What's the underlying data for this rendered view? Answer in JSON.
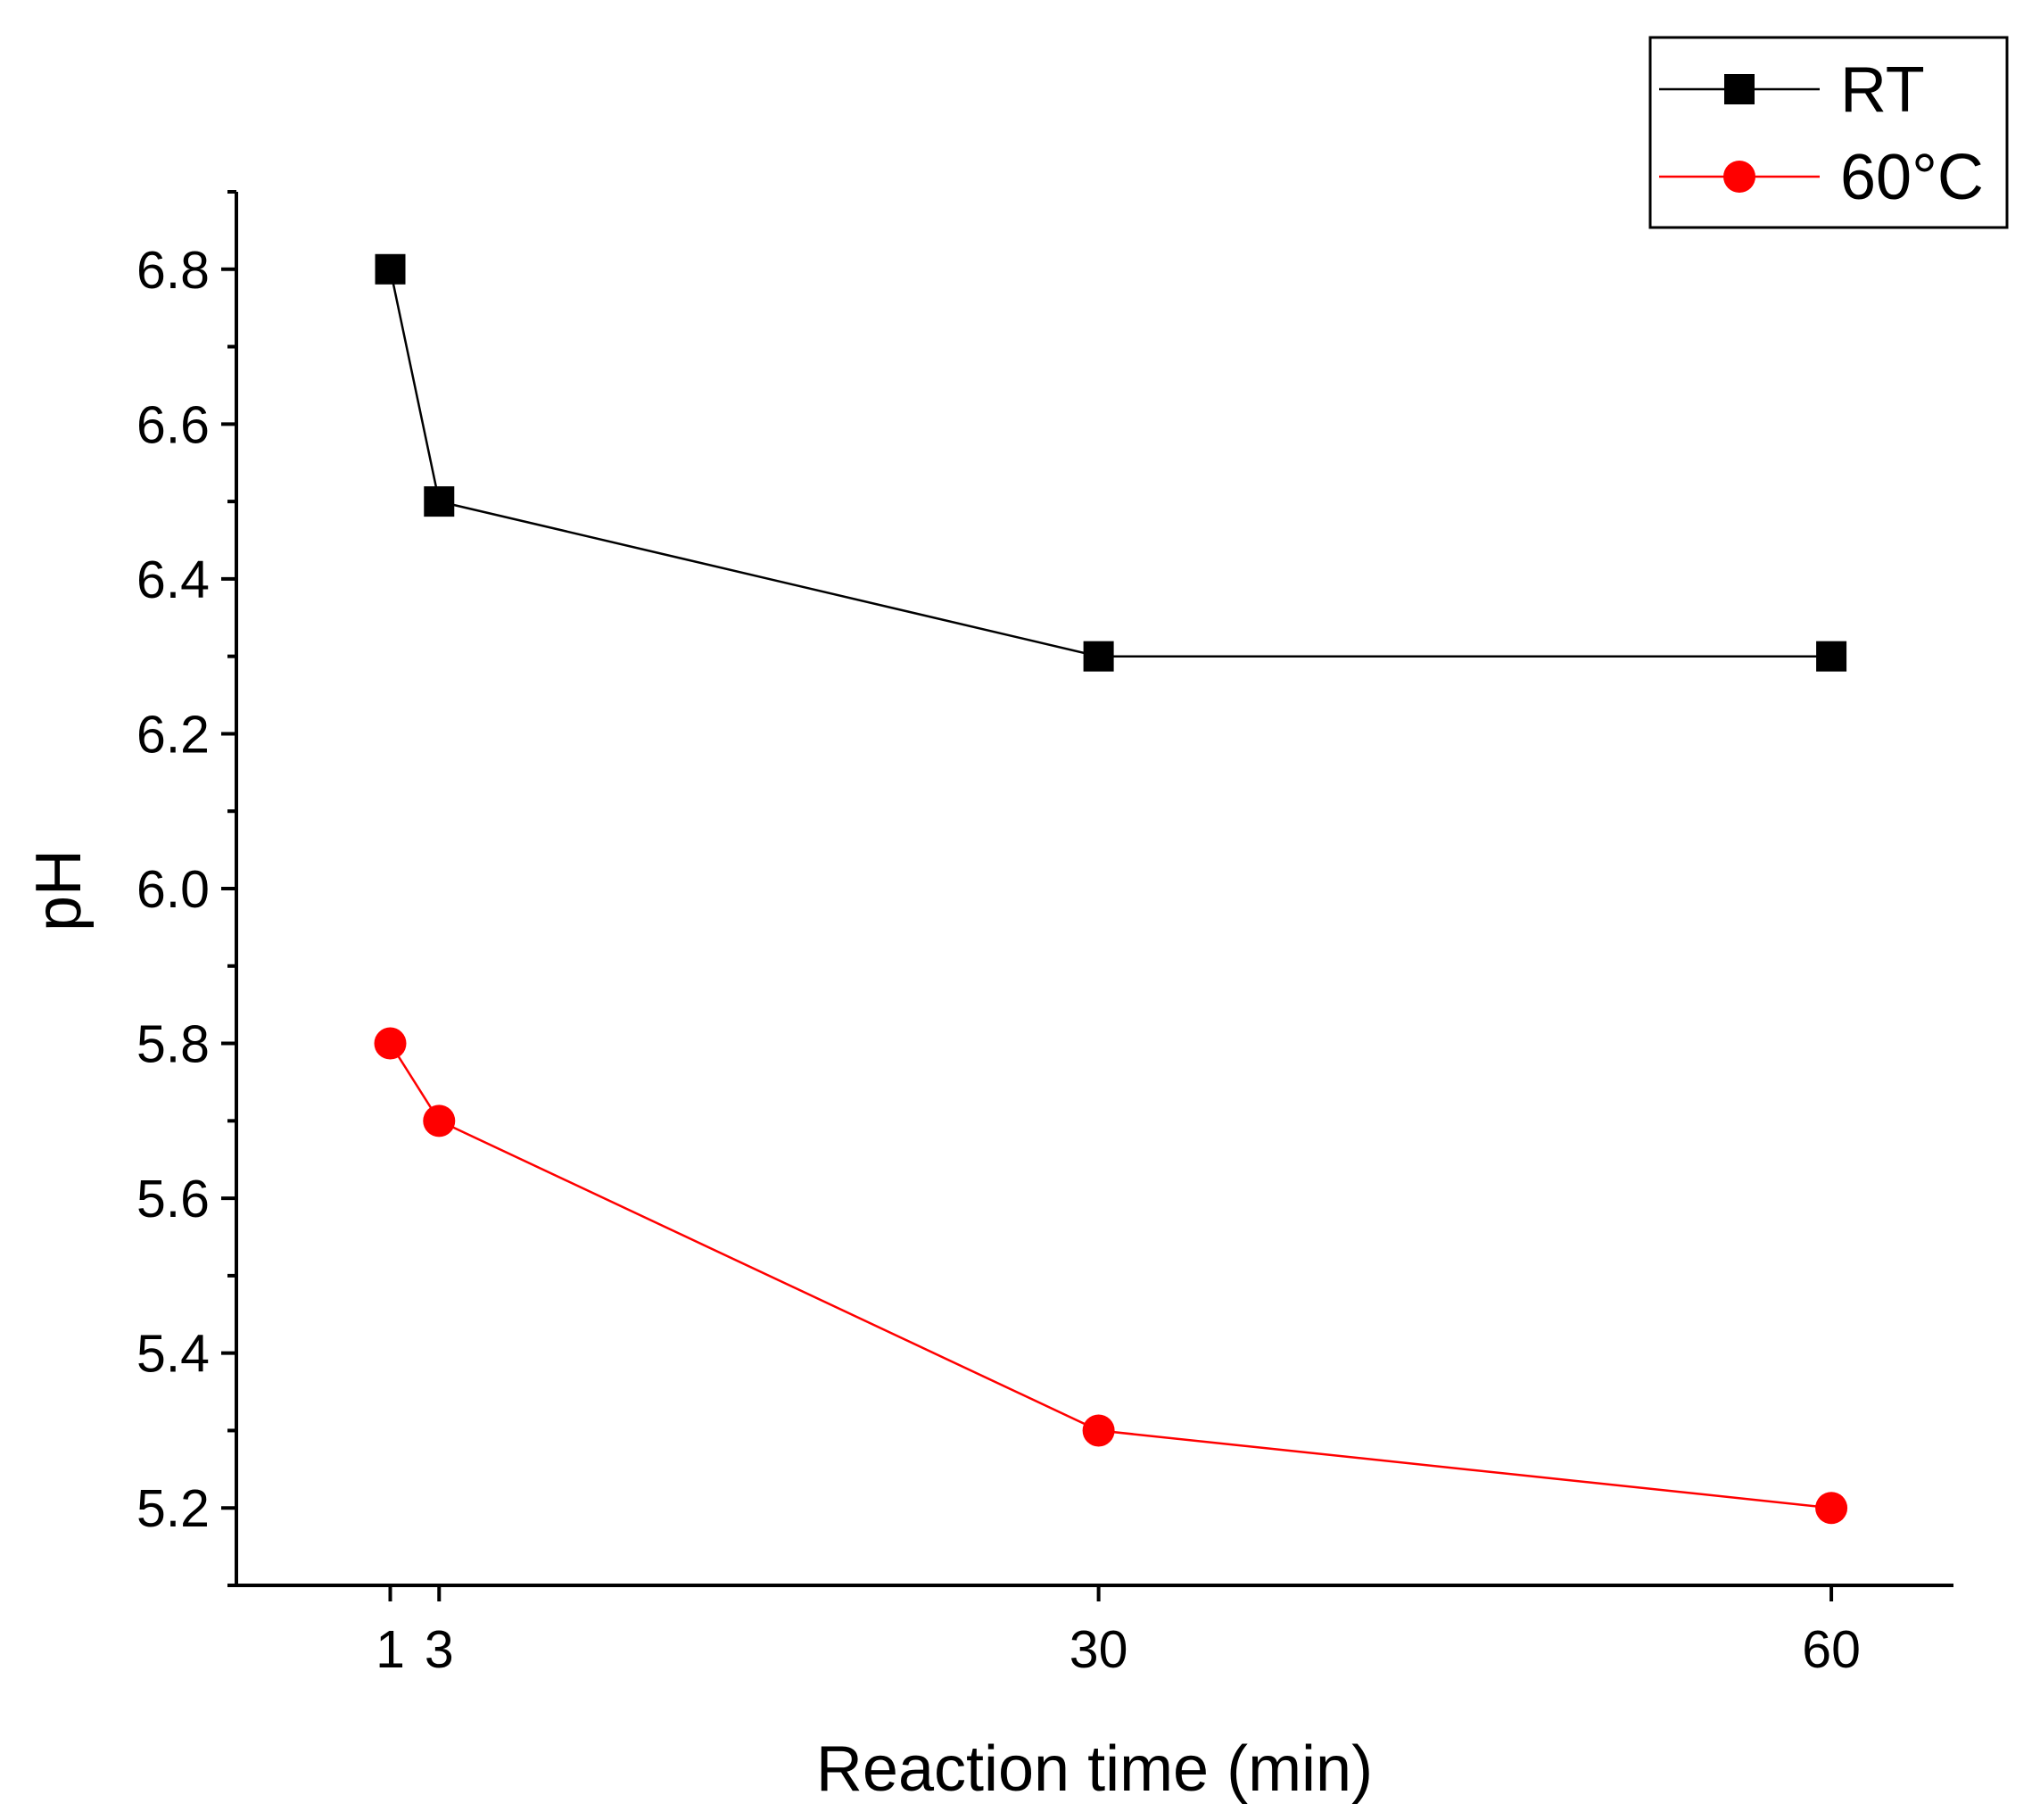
{
  "chart_data": {
    "type": "line",
    "title": "",
    "xlabel": "Reaction time (min)",
    "ylabel": "pH",
    "xlim": [
      -5.3,
      65
    ],
    "ylim": [
      5.1,
      6.9
    ],
    "x": [
      1,
      3,
      30,
      60
    ],
    "xticks": [
      1,
      3,
      30,
      60
    ],
    "xtick_labels": [
      "1",
      "3",
      "30",
      "60"
    ],
    "yticks": [
      5.2,
      5.4,
      5.6,
      5.8,
      6.0,
      6.2,
      6.4,
      6.6,
      6.8
    ],
    "ytick_labels": [
      "5.2",
      "5.4",
      "5.6",
      "5.8",
      "6.0",
      "6.2",
      "6.4",
      "6.6",
      "6.8"
    ],
    "grid": false,
    "legend_position": "top-right",
    "series": [
      {
        "name": "RT",
        "values": [
          6.8,
          6.5,
          6.3,
          6.3
        ],
        "color": "#000000",
        "marker": "square"
      },
      {
        "name": "60°C",
        "values": [
          5.8,
          5.7,
          5.3,
          5.2
        ],
        "color": "#ff0000",
        "marker": "circle"
      }
    ]
  }
}
